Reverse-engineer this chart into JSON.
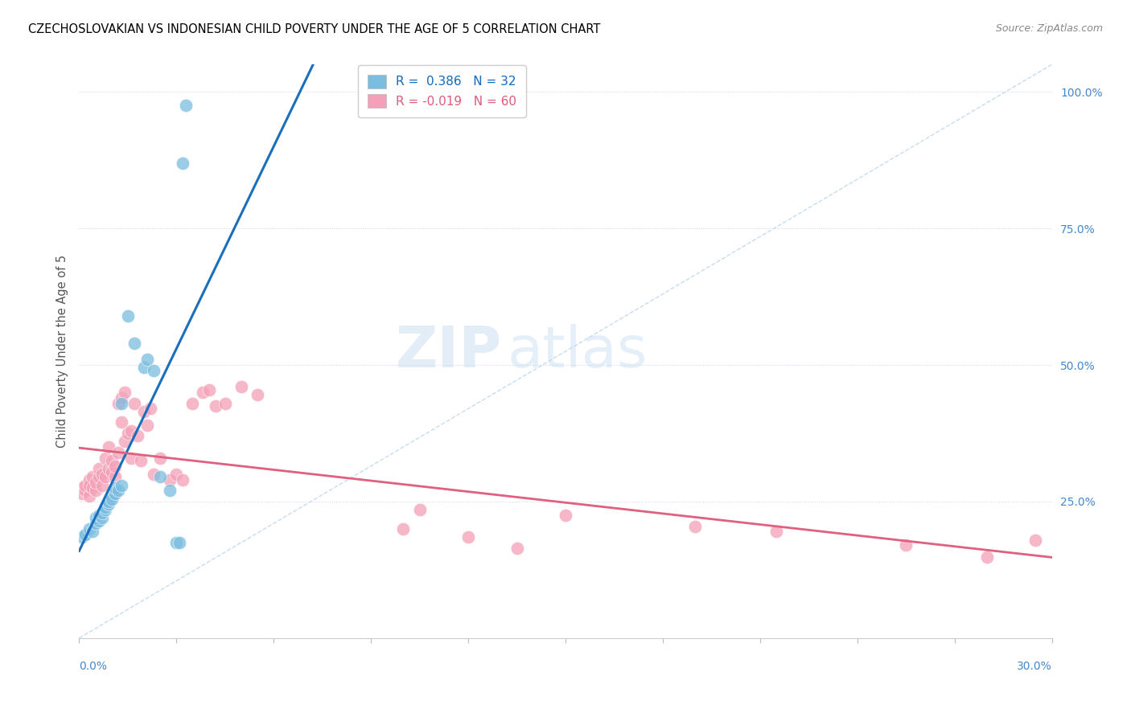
{
  "title": "CZECHOSLOVAKIAN VS INDONESIAN CHILD POVERTY UNDER THE AGE OF 5 CORRELATION CHART",
  "source": "Source: ZipAtlas.com",
  "ylabel": "Child Poverty Under the Age of 5",
  "ytick_labels": [
    "25.0%",
    "50.0%",
    "75.0%",
    "100.0%"
  ],
  "ytick_values": [
    0.25,
    0.5,
    0.75,
    1.0
  ],
  "xmin": 0.0,
  "xmax": 0.3,
  "ymin": 0.0,
  "ymax": 1.05,
  "czecho_color": "#7bbde0",
  "indo_color": "#f4a0b8",
  "czecho_line_color": "#1a6fbd",
  "indo_line_color": "#e06080",
  "ref_line_color": "#b8d4ee",
  "watermark_zip": "ZIP",
  "watermark_atlas": "atlas",
  "r_czecho": "0.386",
  "n_czecho": "32",
  "r_indo": "-0.019",
  "n_indo": "60",
  "czecho_x": [
    0.001,
    0.002,
    0.003,
    0.004,
    0.005,
    0.005,
    0.006,
    0.006,
    0.007,
    0.007,
    0.008,
    0.008,
    0.009,
    0.009,
    0.01,
    0.01,
    0.011,
    0.011,
    0.012,
    0.013,
    0.013,
    0.015,
    0.017,
    0.02,
    0.021,
    0.023,
    0.025,
    0.028,
    0.03,
    0.031,
    0.032,
    0.033
  ],
  "czecho_y": [
    0.185,
    0.19,
    0.2,
    0.195,
    0.21,
    0.22,
    0.215,
    0.225,
    0.22,
    0.23,
    0.235,
    0.24,
    0.245,
    0.25,
    0.26,
    0.255,
    0.265,
    0.275,
    0.27,
    0.28,
    0.43,
    0.59,
    0.54,
    0.495,
    0.51,
    0.49,
    0.295,
    0.27,
    0.175,
    0.175,
    0.87,
    0.975
  ],
  "indo_x": [
    0.001,
    0.001,
    0.002,
    0.002,
    0.003,
    0.003,
    0.003,
    0.004,
    0.004,
    0.005,
    0.005,
    0.006,
    0.006,
    0.007,
    0.007,
    0.008,
    0.008,
    0.009,
    0.009,
    0.01,
    0.01,
    0.011,
    0.011,
    0.012,
    0.012,
    0.013,
    0.013,
    0.014,
    0.014,
    0.015,
    0.016,
    0.016,
    0.017,
    0.018,
    0.019,
    0.02,
    0.021,
    0.022,
    0.023,
    0.025,
    0.028,
    0.03,
    0.032,
    0.035,
    0.038,
    0.04,
    0.042,
    0.045,
    0.05,
    0.055,
    0.1,
    0.105,
    0.12,
    0.135,
    0.15,
    0.19,
    0.215,
    0.255,
    0.28,
    0.295
  ],
  "indo_y": [
    0.275,
    0.265,
    0.27,
    0.28,
    0.26,
    0.29,
    0.28,
    0.275,
    0.295,
    0.27,
    0.285,
    0.295,
    0.31,
    0.28,
    0.3,
    0.33,
    0.295,
    0.35,
    0.31,
    0.305,
    0.325,
    0.295,
    0.315,
    0.34,
    0.43,
    0.44,
    0.395,
    0.45,
    0.36,
    0.375,
    0.33,
    0.38,
    0.43,
    0.37,
    0.325,
    0.415,
    0.39,
    0.42,
    0.3,
    0.33,
    0.29,
    0.3,
    0.29,
    0.43,
    0.45,
    0.455,
    0.425,
    0.43,
    0.46,
    0.445,
    0.2,
    0.235,
    0.185,
    0.165,
    0.225,
    0.205,
    0.195,
    0.17,
    0.148,
    0.18
  ]
}
